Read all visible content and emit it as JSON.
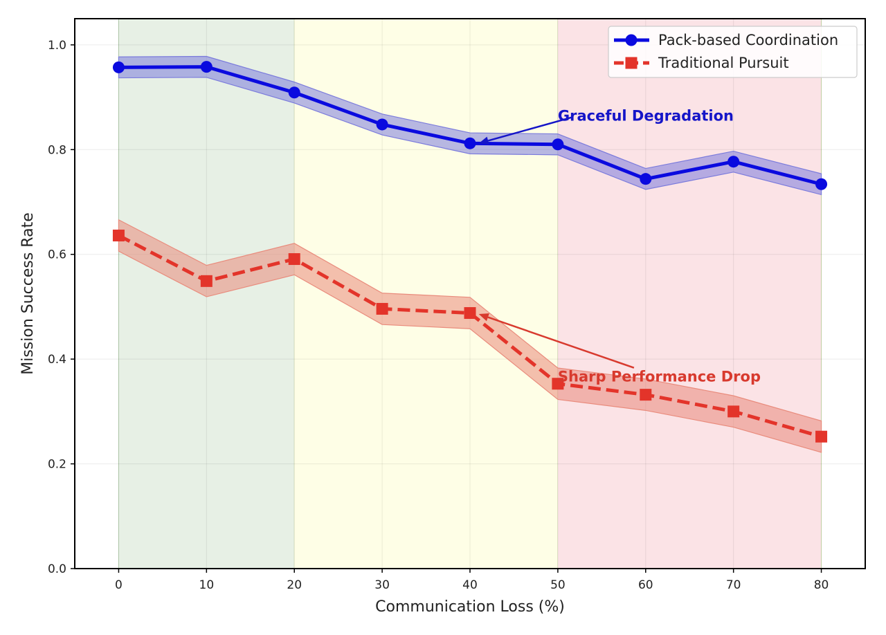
{
  "chart_data": {
    "type": "line",
    "title": "",
    "xlabel": "Communication Loss (%)",
    "ylabel": "Mission Success Rate",
    "xlim": [
      -5,
      85
    ],
    "ylim": [
      0.0,
      1.05
    ],
    "xticks": [
      0,
      10,
      20,
      30,
      40,
      50,
      60,
      70,
      80
    ],
    "xtick_labels": [
      "0",
      "10",
      "20",
      "30",
      "40",
      "50",
      "60",
      "70",
      "80"
    ],
    "yticks": [
      0.0,
      0.2,
      0.4,
      0.6,
      0.8,
      1.0
    ],
    "ytick_labels": [
      "0.0",
      "0.2",
      "0.4",
      "0.6",
      "0.8",
      "1.0"
    ],
    "grid": true,
    "legend_position": "top-right",
    "x": [
      0,
      10,
      20,
      30,
      40,
      50,
      60,
      70,
      80
    ],
    "series": [
      {
        "name": "Pack-based Coordination",
        "color": "#0a0adf",
        "band_color": "#7b7bdc",
        "marker": "circle",
        "linestyle": "solid",
        "values": [
          0.957,
          0.958,
          0.909,
          0.848,
          0.812,
          0.81,
          0.744,
          0.777,
          0.734
        ],
        "band": [
          0.02,
          0.02,
          0.02,
          0.02,
          0.02,
          0.02,
          0.02,
          0.02,
          0.02
        ]
      },
      {
        "name": "Traditional Pursuit",
        "color": "#e3342a",
        "band_color": "#e98b7c",
        "marker": "square",
        "linestyle": "dashed",
        "values": [
          0.636,
          0.549,
          0.591,
          0.496,
          0.488,
          0.353,
          0.332,
          0.3,
          0.252
        ],
        "band": [
          0.03,
          0.03,
          0.03,
          0.03,
          0.03,
          0.03,
          0.03,
          0.03,
          0.03
        ]
      }
    ],
    "regions": [
      {
        "x0": 0,
        "x1": 20,
        "color": "#e7f0e5"
      },
      {
        "x0": 20,
        "x1": 50,
        "color": "#fefee6"
      },
      {
        "x0": 50,
        "x1": 80,
        "color": "#fbe3e6"
      }
    ],
    "annotations": [
      {
        "text": "Graceful Degradation",
        "color": "#1515c8",
        "x": 50,
        "y": 0.855,
        "target_x": 41,
        "target_y": 0.812
      },
      {
        "text": "Sharp Performance Drop",
        "color": "#d83a2e",
        "x": 50,
        "y": 0.357,
        "target_x": 41,
        "target_y": 0.486
      }
    ]
  }
}
